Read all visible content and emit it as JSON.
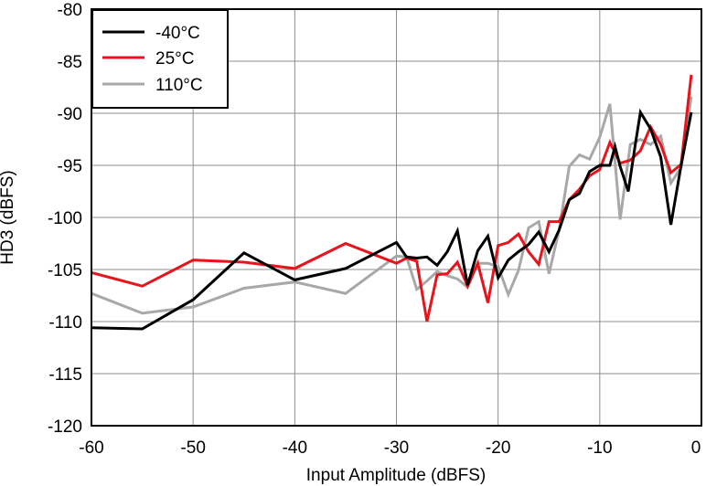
{
  "chart_data": {
    "type": "line",
    "title": "",
    "xlabel": "Input Amplitude (dBFS)",
    "ylabel": "HD3 (dBFS)",
    "xlim": [
      -60,
      0
    ],
    "ylim": [
      -120,
      -80
    ],
    "xticks": [
      "-60",
      "-50",
      "-40",
      "-30",
      "-20",
      "-10",
      "0"
    ],
    "yticks": [
      "-80",
      "-85",
      "-90",
      "-95",
      "-100",
      "-105",
      "-110",
      "-115",
      "-120"
    ],
    "grid": true,
    "legend_position": "top-left",
    "series": [
      {
        "name": "-40°C",
        "color": "#000000",
        "points": [
          [
            -60,
            -110.6
          ],
          [
            -55,
            -110.7
          ],
          [
            -50,
            -107.9
          ],
          [
            -45,
            -103.4
          ],
          [
            -40,
            -106.0
          ],
          [
            -35,
            -104.9
          ],
          [
            -30,
            -102.4
          ],
          [
            -29,
            -103.8
          ],
          [
            -28,
            -103.9
          ],
          [
            -27,
            -103.8
          ],
          [
            -26,
            -104.6
          ],
          [
            -25,
            -103.3
          ],
          [
            -24,
            -101.3
          ],
          [
            -23,
            -106.5
          ],
          [
            -22,
            -103.2
          ],
          [
            -21,
            -101.8
          ],
          [
            -20,
            -105.8
          ],
          [
            -19,
            -104.1
          ],
          [
            -18,
            -103.3
          ],
          [
            -17,
            -102.6
          ],
          [
            -16,
            -101.4
          ],
          [
            -15,
            -103.3
          ],
          [
            -14,
            -101.2
          ],
          [
            -13,
            -98.3
          ],
          [
            -12,
            -97.7
          ],
          [
            -11,
            -95.6
          ],
          [
            -10,
            -95.0
          ],
          [
            -9,
            -95.0
          ],
          [
            -8.5,
            -93.2
          ],
          [
            -8,
            -95.1
          ],
          [
            -7.2,
            -97.5
          ],
          [
            -6.5,
            -93.0
          ],
          [
            -6,
            -89.9
          ],
          [
            -5,
            -91.5
          ],
          [
            -4,
            -94.2
          ],
          [
            -3,
            -100.7
          ],
          [
            -2,
            -95.0
          ],
          [
            -1,
            -89.9
          ]
        ]
      },
      {
        "name": "25°C",
        "color": "#e8141c",
        "points": [
          [
            -60,
            -105.3
          ],
          [
            -55,
            -106.6
          ],
          [
            -50,
            -104.1
          ],
          [
            -45,
            -104.3
          ],
          [
            -40,
            -104.9
          ],
          [
            -35,
            -102.5
          ],
          [
            -30,
            -104.4
          ],
          [
            -29,
            -103.9
          ],
          [
            -28,
            -104.2
          ],
          [
            -27,
            -110.0
          ],
          [
            -26,
            -105.5
          ],
          [
            -25,
            -105.4
          ],
          [
            -24,
            -104.3
          ],
          [
            -23,
            -106.6
          ],
          [
            -22,
            -104.4
          ],
          [
            -21,
            -108.2
          ],
          [
            -20,
            -102.7
          ],
          [
            -19,
            -102.4
          ],
          [
            -18,
            -101.6
          ],
          [
            -17,
            -103.3
          ],
          [
            -16,
            -104.5
          ],
          [
            -15,
            -100.4
          ],
          [
            -14,
            -100.4
          ],
          [
            -13,
            -98.3
          ],
          [
            -12,
            -97.3
          ],
          [
            -11,
            -96.0
          ],
          [
            -10,
            -95.4
          ],
          [
            -9,
            -92.8
          ],
          [
            -8,
            -94.8
          ],
          [
            -7,
            -94.5
          ],
          [
            -6,
            -93.6
          ],
          [
            -5,
            -91.3
          ],
          [
            -4,
            -93.0
          ],
          [
            -3,
            -95.7
          ],
          [
            -2,
            -94.9
          ],
          [
            -1,
            -86.3
          ]
        ]
      },
      {
        "name": "110°C",
        "color": "#a8a8a8",
        "points": [
          [
            -60,
            -107.3
          ],
          [
            -55,
            -109.2
          ],
          [
            -50,
            -108.6
          ],
          [
            -45,
            -106.8
          ],
          [
            -40,
            -106.2
          ],
          [
            -35,
            -107.3
          ],
          [
            -30,
            -103.7
          ],
          [
            -29,
            -103.8
          ],
          [
            -28,
            -106.9
          ],
          [
            -27,
            -106.1
          ],
          [
            -26,
            -105.2
          ],
          [
            -25,
            -105.6
          ],
          [
            -24,
            -105.9
          ],
          [
            -23,
            -106.7
          ],
          [
            -22,
            -104.4
          ],
          [
            -21,
            -104.4
          ],
          [
            -20,
            -104.7
          ],
          [
            -19,
            -107.4
          ],
          [
            -18,
            -105.1
          ],
          [
            -17,
            -101.0
          ],
          [
            -16,
            -100.4
          ],
          [
            -15,
            -105.4
          ],
          [
            -14,
            -101.2
          ],
          [
            -13,
            -95.1
          ],
          [
            -12,
            -94.0
          ],
          [
            -11,
            -94.4
          ],
          [
            -10,
            -92.3
          ],
          [
            -9,
            -89.1
          ],
          [
            -8,
            -100.2
          ],
          [
            -7,
            -93.0
          ],
          [
            -6,
            -92.5
          ],
          [
            -5,
            -93.0
          ],
          [
            -4,
            -92.2
          ],
          [
            -3,
            -96.7
          ],
          [
            -2,
            -95.2
          ],
          [
            -1,
            -88.4
          ]
        ]
      }
    ]
  }
}
